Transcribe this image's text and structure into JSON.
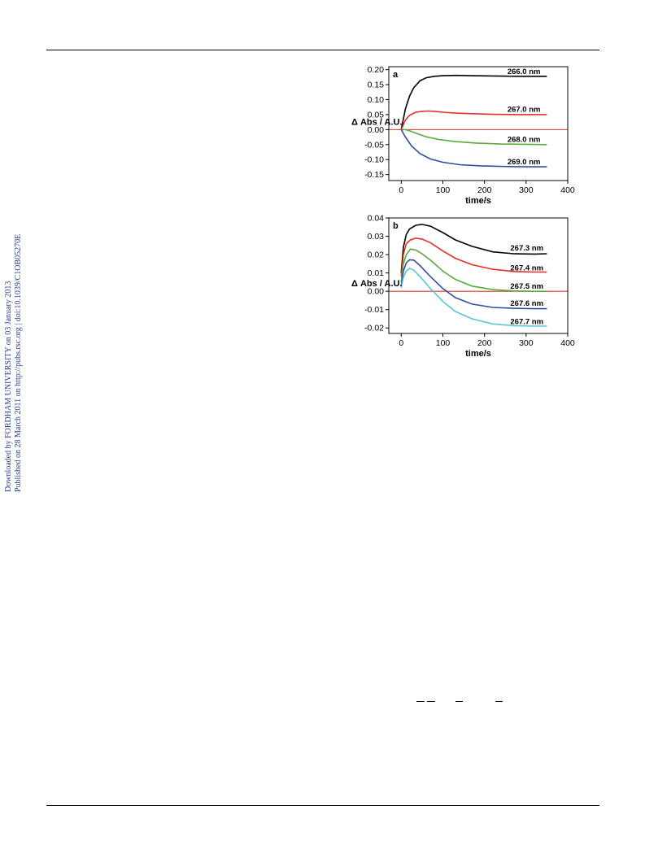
{
  "side_note": {
    "line1": "Downloaded by FORDHAM UNIVERSITY on 03 January 2013",
    "line2": "Published on 28 March 2011 on http://pubs.rsc.org | doi:10.1039/C1OB05270E"
  },
  "chart_data": [
    {
      "type": "line",
      "panel": "a",
      "xlabel": "time/s",
      "ylabel": "Δ Abs / A.U.",
      "xlim": [
        -30,
        400
      ],
      "ylim": [
        -0.17,
        0.21
      ],
      "xticks": [
        0,
        100,
        200,
        300,
        400
      ],
      "yticks": [
        -0.15,
        -0.1,
        -0.05,
        0.0,
        0.05,
        0.1,
        0.15,
        0.2
      ],
      "ytick_decimals": 2,
      "baseline": 0.0,
      "baseline_color": "#e0302a",
      "series": [
        {
          "name": "266.0 nm",
          "color": "#000000",
          "points": [
            [
              0,
              0
            ],
            [
              10,
              0.07
            ],
            [
              20,
              0.112
            ],
            [
              30,
              0.14
            ],
            [
              45,
              0.163
            ],
            [
              60,
              0.173
            ],
            [
              80,
              0.178
            ],
            [
              100,
              0.18
            ],
            [
              130,
              0.181
            ],
            [
              170,
              0.18
            ],
            [
              220,
              0.179
            ],
            [
              280,
              0.178
            ],
            [
              350,
              0.178
            ]
          ],
          "label_x": 255,
          "label_y": 0.194
        },
        {
          "name": "267.0 nm",
          "color": "#e0302a",
          "points": [
            [
              0,
              0
            ],
            [
              10,
              0.032
            ],
            [
              20,
              0.048
            ],
            [
              35,
              0.058
            ],
            [
              50,
              0.061
            ],
            [
              65,
              0.062
            ],
            [
              80,
              0.061
            ],
            [
              100,
              0.058
            ],
            [
              130,
              0.055
            ],
            [
              170,
              0.053
            ],
            [
              220,
              0.051
            ],
            [
              280,
              0.05
            ],
            [
              350,
              0.05
            ]
          ],
          "label_x": 255,
          "label_y": 0.067
        },
        {
          "name": "268.0 nm",
          "color": "#5aab3c",
          "points": [
            [
              0,
              0
            ],
            [
              10,
              0.0
            ],
            [
              20,
              -0.004
            ],
            [
              35,
              -0.012
            ],
            [
              60,
              -0.024
            ],
            [
              90,
              -0.033
            ],
            [
              130,
              -0.04
            ],
            [
              180,
              -0.045
            ],
            [
              240,
              -0.048
            ],
            [
              300,
              -0.049
            ],
            [
              350,
              -0.05
            ]
          ],
          "label_x": 255,
          "label_y": -0.033
        },
        {
          "name": "269.0 nm",
          "color": "#2e4f9e",
          "points": [
            [
              0,
              0
            ],
            [
              10,
              -0.025
            ],
            [
              25,
              -0.055
            ],
            [
              45,
              -0.08
            ],
            [
              70,
              -0.098
            ],
            [
              100,
              -0.109
            ],
            [
              140,
              -0.117
            ],
            [
              190,
              -0.121
            ],
            [
              250,
              -0.123
            ],
            [
              300,
              -0.124
            ],
            [
              350,
              -0.124
            ]
          ],
          "label_x": 255,
          "label_y": -0.108
        }
      ]
    },
    {
      "type": "line",
      "panel": "b",
      "xlabel": "time/s",
      "ylabel": "Δ Abs / A.U.",
      "xlim": [
        -30,
        400
      ],
      "ylim": [
        -0.023,
        0.04
      ],
      "xticks": [
        0,
        100,
        200,
        300,
        400
      ],
      "yticks": [
        -0.02,
        -0.01,
        0.0,
        0.01,
        0.02,
        0.03,
        0.04
      ],
      "ytick_decimals": 2,
      "baseline": 0.0,
      "baseline_color": "#e0302a",
      "series": [
        {
          "name": "267.3 nm",
          "color": "#000000",
          "points": [
            [
              0,
              0.01
            ],
            [
              5,
              0.024
            ],
            [
              12,
              0.031
            ],
            [
              20,
              0.034
            ],
            [
              35,
              0.036
            ],
            [
              50,
              0.0365
            ],
            [
              70,
              0.0355
            ],
            [
              100,
              0.032
            ],
            [
              130,
              0.028
            ],
            [
              170,
              0.0245
            ],
            [
              220,
              0.0215
            ],
            [
              270,
              0.0205
            ],
            [
              320,
              0.0203
            ],
            [
              350,
              0.0205
            ]
          ],
          "label_x": 262,
          "label_y": 0.0235
        },
        {
          "name": "267.4 nm",
          "color": "#e0302a",
          "points": [
            [
              0,
              0.008
            ],
            [
              5,
              0.02
            ],
            [
              12,
              0.026
            ],
            [
              22,
              0.028
            ],
            [
              35,
              0.029
            ],
            [
              50,
              0.0285
            ],
            [
              70,
              0.0265
            ],
            [
              100,
              0.022
            ],
            [
              130,
              0.018
            ],
            [
              170,
              0.0145
            ],
            [
              220,
              0.012
            ],
            [
              270,
              0.0108
            ],
            [
              320,
              0.0105
            ],
            [
              350,
              0.0105
            ]
          ],
          "label_x": 262,
          "label_y": 0.0127
        },
        {
          "name": "267.5 nm",
          "color": "#5aab3c",
          "points": [
            [
              0,
              0.005
            ],
            [
              5,
              0.015
            ],
            [
              12,
              0.02
            ],
            [
              22,
              0.023
            ],
            [
              35,
              0.0225
            ],
            [
              50,
              0.0205
            ],
            [
              70,
              0.017
            ],
            [
              100,
              0.011
            ],
            [
              130,
              0.0065
            ],
            [
              170,
              0.0028
            ],
            [
              220,
              0.0009
            ],
            [
              270,
              0.0002
            ],
            [
              320,
              0.0
            ],
            [
              350,
              0.0
            ]
          ],
          "label_x": 262,
          "label_y": 0.0028
        },
        {
          "name": "267.6 nm",
          "color": "#2e4f9e",
          "points": [
            [
              0,
              0.003
            ],
            [
              5,
              0.011
            ],
            [
              12,
              0.0155
            ],
            [
              20,
              0.0172
            ],
            [
              30,
              0.017
            ],
            [
              45,
              0.014
            ],
            [
              70,
              0.008
            ],
            [
              100,
              0.0015
            ],
            [
              130,
              -0.0035
            ],
            [
              170,
              -0.007
            ],
            [
              220,
              -0.0088
            ],
            [
              270,
              -0.0093
            ],
            [
              320,
              -0.0095
            ],
            [
              350,
              -0.0095
            ]
          ],
          "label_x": 262,
          "label_y": -0.0065
        },
        {
          "name": "267.7 nm",
          "color": "#5ac6dc",
          "points": [
            [
              0,
              0.002
            ],
            [
              5,
              0.0075
            ],
            [
              12,
              0.011
            ],
            [
              20,
              0.0125
            ],
            [
              30,
              0.0115
            ],
            [
              45,
              0.008
            ],
            [
              70,
              0.0015
            ],
            [
              100,
              -0.0055
            ],
            [
              130,
              -0.011
            ],
            [
              170,
              -0.015
            ],
            [
              220,
              -0.0178
            ],
            [
              270,
              -0.0188
            ],
            [
              320,
              -0.019
            ],
            [
              350,
              -0.019
            ]
          ],
          "label_x": 262,
          "label_y": -0.0165
        }
      ]
    }
  ]
}
